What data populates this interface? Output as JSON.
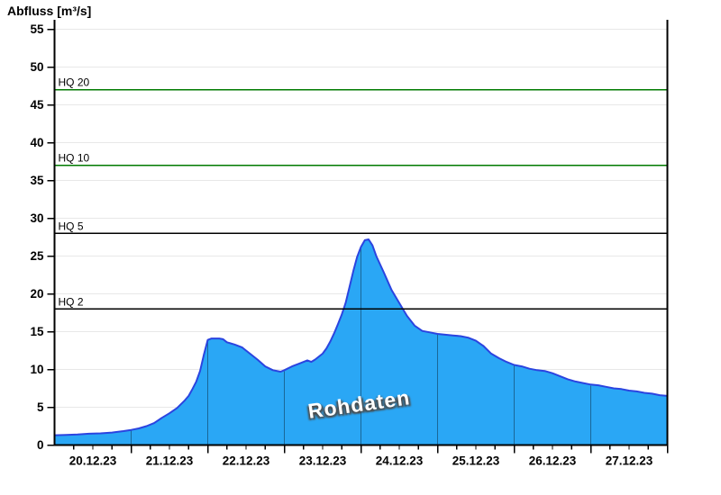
{
  "title": "Abfluss [m³/s]",
  "watermark": "Rohdaten",
  "chart_data": {
    "type": "area",
    "title": "Abfluss [m³/s]",
    "ylabel": "Abfluss [m³/s]",
    "xlabel": "",
    "legend": "none",
    "grid": "horizontal",
    "x_axis": {
      "labels": [
        "20.12.23",
        "21.12.23",
        "22.12.23",
        "23.12.23",
        "24.12.23",
        "25.12.23",
        "26.12.23",
        "27.12.23"
      ],
      "span_days": 8,
      "minor_tick_days": 0.25
    },
    "y_axis": {
      "min": 0,
      "max": 55,
      "ticks": [
        0,
        5,
        10,
        15,
        20,
        25,
        30,
        35,
        40,
        45,
        50,
        55
      ]
    },
    "reference_lines": [
      {
        "label": "HQ 20",
        "value": 47,
        "color": "#007a00"
      },
      {
        "label": "HQ 10",
        "value": 37,
        "color": "#007a00"
      },
      {
        "label": "HQ 5",
        "value": 28,
        "color": "#000000"
      },
      {
        "label": "HQ 2",
        "value": 18,
        "color": "#000000"
      }
    ],
    "series": [
      {
        "name": "Rohdaten",
        "x_unit": "days_from_20.12.23_00:00",
        "points": [
          [
            0,
            1.3
          ],
          [
            0.15,
            1.35
          ],
          [
            0.3,
            1.4
          ],
          [
            0.45,
            1.5
          ],
          [
            0.6,
            1.55
          ],
          [
            0.75,
            1.65
          ],
          [
            0.9,
            1.85
          ],
          [
            1,
            2
          ],
          [
            1.1,
            2.2
          ],
          [
            1.2,
            2.5
          ],
          [
            1.3,
            2.9
          ],
          [
            1.4,
            3.6
          ],
          [
            1.5,
            4.2
          ],
          [
            1.6,
            4.9
          ],
          [
            1.7,
            5.9
          ],
          [
            1.75,
            6.5
          ],
          [
            1.8,
            7.4
          ],
          [
            1.85,
            8.4
          ],
          [
            1.9,
            9.8
          ],
          [
            1.95,
            12
          ],
          [
            2,
            13.9
          ],
          [
            2.05,
            14.1
          ],
          [
            2.15,
            14.1
          ],
          [
            2.2,
            14
          ],
          [
            2.25,
            13.6
          ],
          [
            2.35,
            13.3
          ],
          [
            2.45,
            12.9
          ],
          [
            2.5,
            12.5
          ],
          [
            2.55,
            12.1
          ],
          [
            2.65,
            11.3
          ],
          [
            2.75,
            10.4
          ],
          [
            2.85,
            9.9
          ],
          [
            2.95,
            9.7
          ],
          [
            3,
            9.9
          ],
          [
            3.1,
            10.4
          ],
          [
            3.2,
            10.8
          ],
          [
            3.3,
            11.2
          ],
          [
            3.35,
            11
          ],
          [
            3.4,
            11.3
          ],
          [
            3.5,
            12.1
          ],
          [
            3.55,
            12.8
          ],
          [
            3.6,
            13.7
          ],
          [
            3.65,
            14.8
          ],
          [
            3.7,
            16
          ],
          [
            3.75,
            17.3
          ],
          [
            3.8,
            18.8
          ],
          [
            3.85,
            20.9
          ],
          [
            3.9,
            23
          ],
          [
            3.95,
            24.9
          ],
          [
            4,
            26.2
          ],
          [
            4.05,
            27.1
          ],
          [
            4.1,
            27.2
          ],
          [
            4.15,
            26.4
          ],
          [
            4.2,
            25
          ],
          [
            4.3,
            22.8
          ],
          [
            4.4,
            20.5
          ],
          [
            4.5,
            18.8
          ],
          [
            4.6,
            17.1
          ],
          [
            4.7,
            15.8
          ],
          [
            4.8,
            15.1
          ],
          [
            4.9,
            14.9
          ],
          [
            5,
            14.7
          ],
          [
            5.1,
            14.6
          ],
          [
            5.2,
            14.5
          ],
          [
            5.3,
            14.4
          ],
          [
            5.4,
            14.2
          ],
          [
            5.5,
            13.8
          ],
          [
            5.6,
            13.1
          ],
          [
            5.7,
            12.1
          ],
          [
            5.8,
            11.5
          ],
          [
            5.9,
            11
          ],
          [
            6,
            10.6
          ],
          [
            6.1,
            10.4
          ],
          [
            6.2,
            10.1
          ],
          [
            6.3,
            9.9
          ],
          [
            6.4,
            9.8
          ],
          [
            6.5,
            9.5
          ],
          [
            6.6,
            9.1
          ],
          [
            6.7,
            8.7
          ],
          [
            6.8,
            8.4
          ],
          [
            6.9,
            8.2
          ],
          [
            7,
            8
          ],
          [
            7.1,
            7.9
          ],
          [
            7.2,
            7.7
          ],
          [
            7.3,
            7.5
          ],
          [
            7.4,
            7.4
          ],
          [
            7.5,
            7.2
          ],
          [
            7.6,
            7.1
          ],
          [
            7.7,
            6.9
          ],
          [
            7.8,
            6.8
          ],
          [
            7.9,
            6.6
          ],
          [
            8,
            6.5
          ]
        ]
      }
    ],
    "colors": {
      "fill": "#2aa7f5",
      "outline": "#2b44e0",
      "grid": "#e8e8e8",
      "axis": "#000000",
      "day_separator": "rgba(0,0,0,0.38)"
    }
  }
}
